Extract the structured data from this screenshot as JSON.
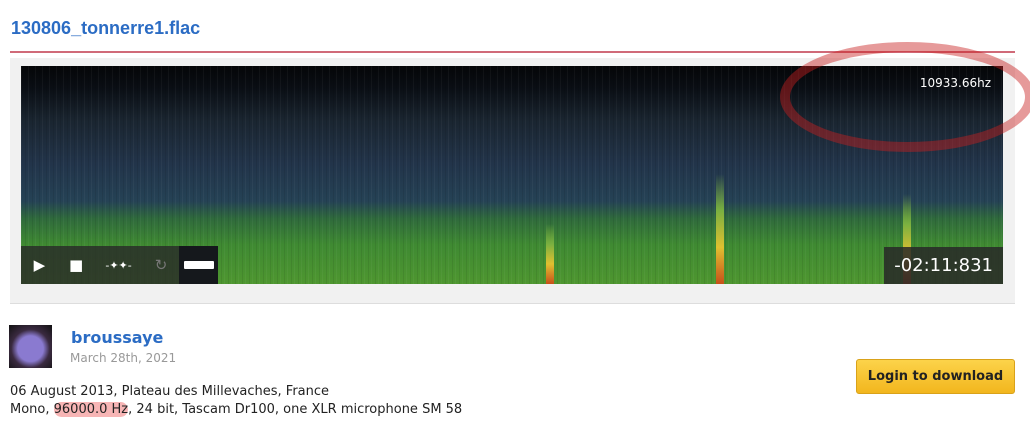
{
  "title": "130806_tonnerre1.flac",
  "player": {
    "frequency": "10933.66hz",
    "time": "-02:11:831",
    "controls": [
      "play-icon",
      "stop-icon",
      "waveform-icon",
      "loop-icon",
      "ruler-icon"
    ]
  },
  "user": {
    "name": "broussaye",
    "date": "March 28th, 2021"
  },
  "description": {
    "line1": "06 August 2013, Plateau des Millevaches, France",
    "line2_pre": "Mono, ",
    "line2_hl": "96000.0 Hz",
    "line2_post": ", 24 bit, Tascam Dr100, one XLR microphone SM 58"
  },
  "download_label": "Login to download"
}
